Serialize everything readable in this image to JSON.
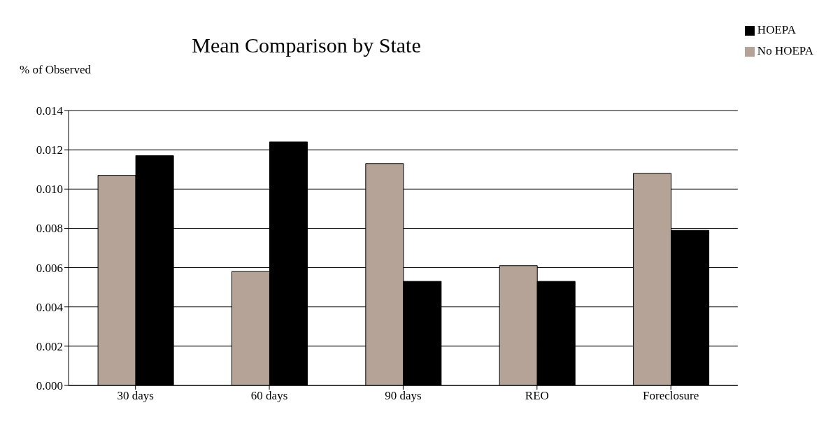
{
  "chart_data": {
    "type": "bar",
    "title": "Mean Comparison by State",
    "ylabel": "% of Observed",
    "categories": [
      "30 days",
      "60 days",
      "90 days",
      "REO",
      "Foreclosure"
    ],
    "series": [
      {
        "name": "No HOEPA",
        "color": "#b5a397",
        "values": [
          0.0107,
          0.0058,
          0.0113,
          0.0061,
          0.0108
        ]
      },
      {
        "name": "HOEPA",
        "color": "#000000",
        "values": [
          0.0117,
          0.0124,
          0.0053,
          0.0053,
          0.0079
        ]
      }
    ],
    "ylim": [
      0,
      0.014
    ],
    "yticks": [
      {
        "value": 0,
        "label": "0.000"
      },
      {
        "value": 0.002,
        "label": "0.002"
      },
      {
        "value": 0.004,
        "label": "0.004"
      },
      {
        "value": 0.006,
        "label": "0.006"
      },
      {
        "value": 0.008,
        "label": "0.008"
      },
      {
        "value": 0.01,
        "label": "0.010"
      },
      {
        "value": 0.012,
        "label": "0.012"
      },
      {
        "value": 0.014,
        "label": "0.014"
      }
    ],
    "grid": "y",
    "legend": "top right"
  }
}
